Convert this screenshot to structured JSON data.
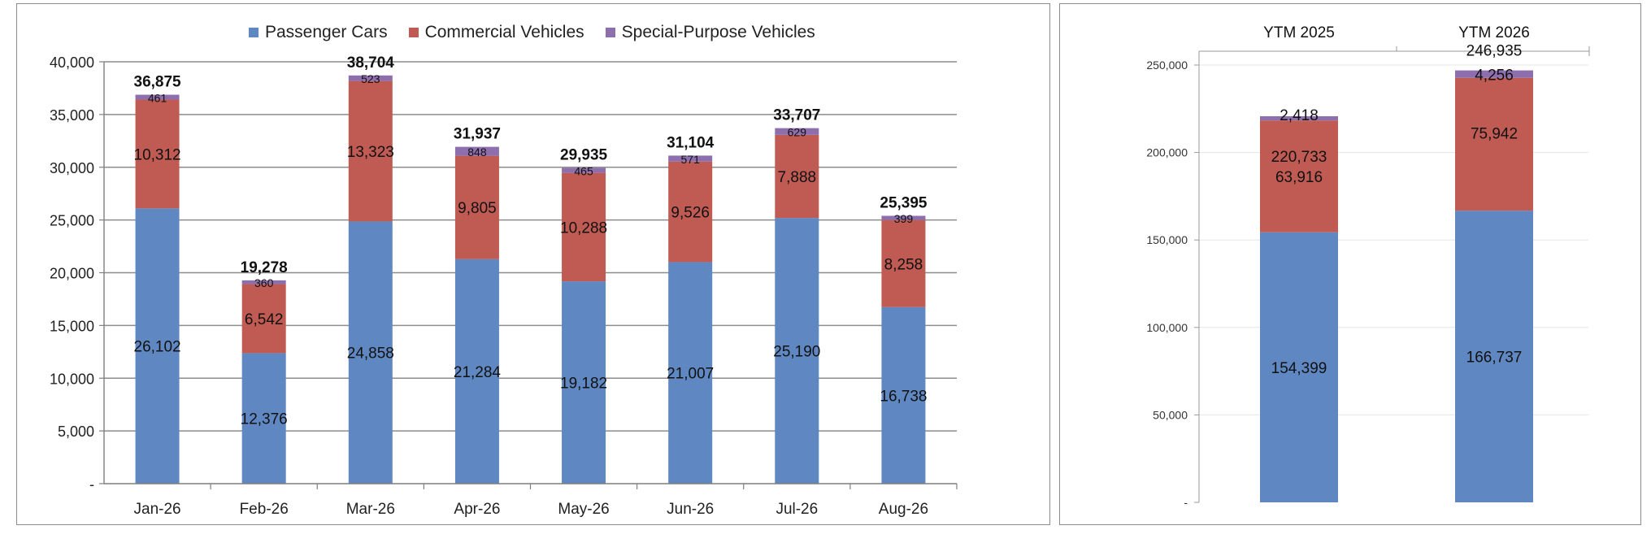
{
  "chart_data": [
    {
      "type": "bar",
      "stacked": true,
      "categories": [
        "Jan-26",
        "Feb-26",
        "Mar-26",
        "Apr-26",
        "May-26",
        "Jun-26",
        "Jul-26",
        "Aug-26"
      ],
      "series": [
        {
          "name": "Passenger Cars",
          "color": "#5f87c1",
          "values": [
            26102,
            12376,
            24858,
            21284,
            19182,
            21007,
            25190,
            16738
          ],
          "labels": [
            "26,102",
            "12,376",
            "24,858",
            "21,284",
            "19,182",
            "21,007",
            "25,190",
            "16,738"
          ]
        },
        {
          "name": "Commercial Vehicles",
          "color": "#bf5b53",
          "values": [
            10312,
            6542,
            13323,
            9805,
            10288,
            9526,
            7888,
            8258
          ],
          "labels": [
            "10,312",
            "6,542",
            "13,323",
            "9,805",
            "10,288",
            "9,526",
            "7,888",
            "8,258"
          ]
        },
        {
          "name": "Special-Purpose Vehicles",
          "color": "#8e6fae",
          "values": [
            461,
            360,
            523,
            848,
            465,
            571,
            629,
            399
          ],
          "labels": [
            "461",
            "360",
            "523",
            "848",
            "465",
            "571",
            "629",
            "399"
          ]
        }
      ],
      "totals": [
        "36,875",
        "19,278",
        "38,704",
        "31,937",
        "29,935",
        "31,104",
        "33,707",
        "25,395"
      ],
      "totals_values": [
        36875,
        19278,
        38704,
        31937,
        29935,
        31104,
        33707,
        25395
      ],
      "ylim": [
        0,
        40000
      ],
      "yticks": [
        0,
        5000,
        10000,
        15000,
        20000,
        25000,
        30000,
        35000,
        40000
      ],
      "yticklabels": [
        "-",
        "5,000",
        "10,000",
        "15,000",
        "20,000",
        "25,000",
        "30,000",
        "35,000",
        "40,000"
      ],
      "grid": true,
      "legend_position": "top"
    },
    {
      "type": "bar",
      "stacked": true,
      "categories": [
        "YTM 2025",
        "YTM 2026"
      ],
      "series": [
        {
          "name": "Passenger Cars",
          "color": "#5f87c1",
          "values": [
            154399,
            166737
          ],
          "labels": [
            "154,399",
            "166,737"
          ]
        },
        {
          "name": "Commercial Vehicles",
          "color": "#bf5b53",
          "values": [
            63916,
            75942
          ],
          "labels": [
            "63,916",
            "75,942"
          ]
        },
        {
          "name": "Special-Purpose Vehicles",
          "color": "#8e6fae",
          "values": [
            2418,
            4256
          ],
          "labels": [
            "2,418",
            "4,256"
          ]
        }
      ],
      "totals": [
        "220,733",
        "246,935"
      ],
      "totals_values": [
        220733,
        246935
      ],
      "ylim": [
        0,
        250000
      ],
      "yticks": [
        0,
        50000,
        100000,
        150000,
        200000,
        250000
      ],
      "yticklabels": [
        "-",
        "50,000",
        "100,000",
        "150,000",
        "200,000",
        "250,000"
      ],
      "grid": true,
      "category_axis_position": "top"
    }
  ]
}
